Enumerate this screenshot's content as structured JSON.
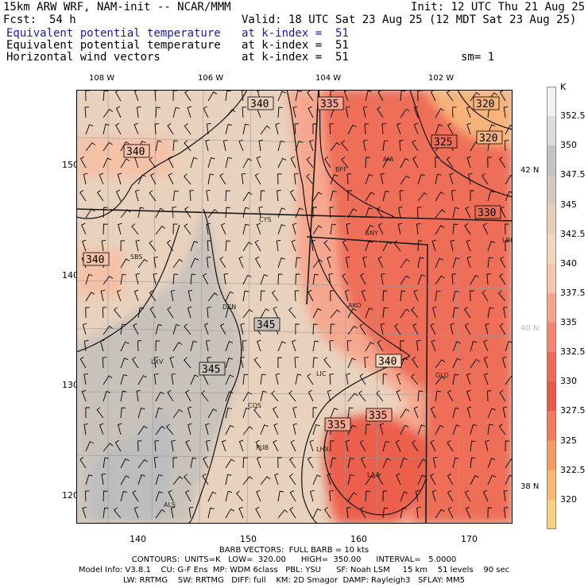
{
  "header": {
    "model": "15km ARW WRF, NAM-init -- NCAR/MMM",
    "init": "Init: 12 UTC Thu 21 Aug 25",
    "fcst_label": "Fcst:",
    "fcst_hours": "54 h",
    "valid": "Valid: 18 UTC Sat 23 Aug 25 (12 MDT Sat 23 Aug 25)",
    "fields": [
      {
        "name": "Equivalent potential temperature",
        "level": "at k-index =  51",
        "extra": ""
      },
      {
        "name": "Equivalent potential temperature",
        "level": "at k-index =  51",
        "extra": ""
      },
      {
        "name": "Horizontal wind vectors",
        "level": "at k-index =  51",
        "extra": "sm= 1"
      }
    ],
    "field_colors": [
      "#1a1aa6",
      "#000000",
      "#000000"
    ]
  },
  "axes": {
    "top_lon_labels": [
      "108 W",
      "106 W",
      "104 W",
      "102 W"
    ],
    "left_ticks": [
      "150",
      "140",
      "130",
      "120"
    ],
    "bottom_ticks": [
      "140",
      "150",
      "160",
      "170"
    ],
    "right_lat_labels": [
      {
        "text": "42 N",
        "color": "#000000"
      },
      {
        "text": "40 N",
        "color": "#b8b8b8"
      },
      {
        "text": "38 N",
        "color": "#000000"
      }
    ]
  },
  "contour_labels": [
    "340",
    "335",
    "320",
    "320",
    "325",
    "340",
    "330",
    "340",
    "345",
    "345",
    "340",
    "335",
    "335"
  ],
  "stations": [
    "BFF",
    "AIA",
    "CYS",
    "SNY",
    "LBF",
    "SBS",
    "DEN",
    "AKO",
    "LXV",
    "LIC",
    "GLD",
    "COS",
    "PUB",
    "LHX",
    "LAA",
    "ALS"
  ],
  "colorbar": {
    "unit": "K",
    "labels": [
      "352.5",
      "350",
      "347.5",
      "345",
      "342.5",
      "340",
      "337.5",
      "335",
      "332.5",
      "330",
      "327.5",
      "325",
      "322.5",
      "320"
    ],
    "colors": [
      "#f2f2f2",
      "#dcdcdc",
      "#c4c4c4",
      "#d2c8be",
      "#e6cfbb",
      "#f5d6bd",
      "#f8c4ac",
      "#f6a58d",
      "#f2856f",
      "#ee6a55",
      "#e95846",
      "#f07c5b",
      "#f49a64",
      "#f8b872",
      "#fbcf84"
    ]
  },
  "footer": {
    "barb": "BARB VECTORS:  FULL BARB = 10 kts",
    "contours": "CONTOURS:  UNITS=K   LOW=  320.00      HIGH=  350.00      INTERVAL=   5.0000",
    "model_info": "Model Info: V3.8.1    CU: G-F Ens  MP: WDM 6class   PBL: YSU      SF: Noah LSM     15 km    51 levels    90 sec",
    "physics": "LW: RRTMG    SW: RRTMG   DIFF: full    KM: 2D Smagor  DAMP: Rayleigh3   SFLAY: MM5"
  }
}
